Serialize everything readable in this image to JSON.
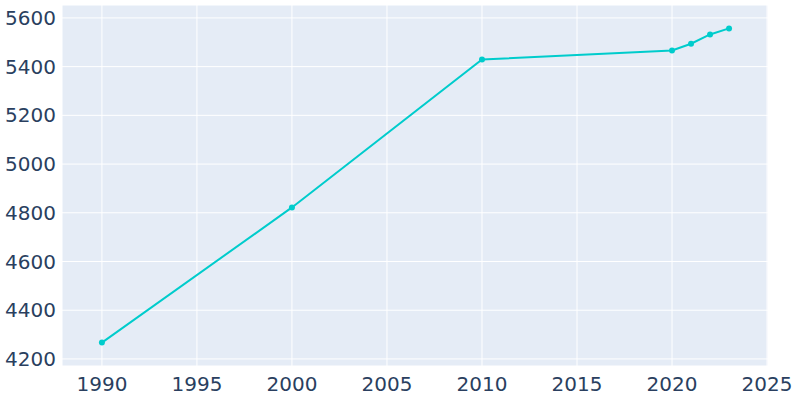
{
  "chart_data": {
    "type": "line",
    "x": [
      1990,
      2000,
      2010,
      2020,
      2021,
      2022,
      2023
    ],
    "values": [
      4267,
      4822,
      5429,
      5466,
      5494,
      5532,
      5557
    ],
    "color": "#00cccc",
    "marker": "circle",
    "xlim": [
      1987.9,
      2025.05
    ],
    "ylim": [
      4171,
      5653
    ],
    "xticks": [
      1990,
      1995,
      2000,
      2005,
      2010,
      2015,
      2020,
      2025
    ],
    "yticks": [
      4200,
      4400,
      4600,
      4800,
      5000,
      5200,
      5400,
      5600
    ],
    "grid": true
  }
}
